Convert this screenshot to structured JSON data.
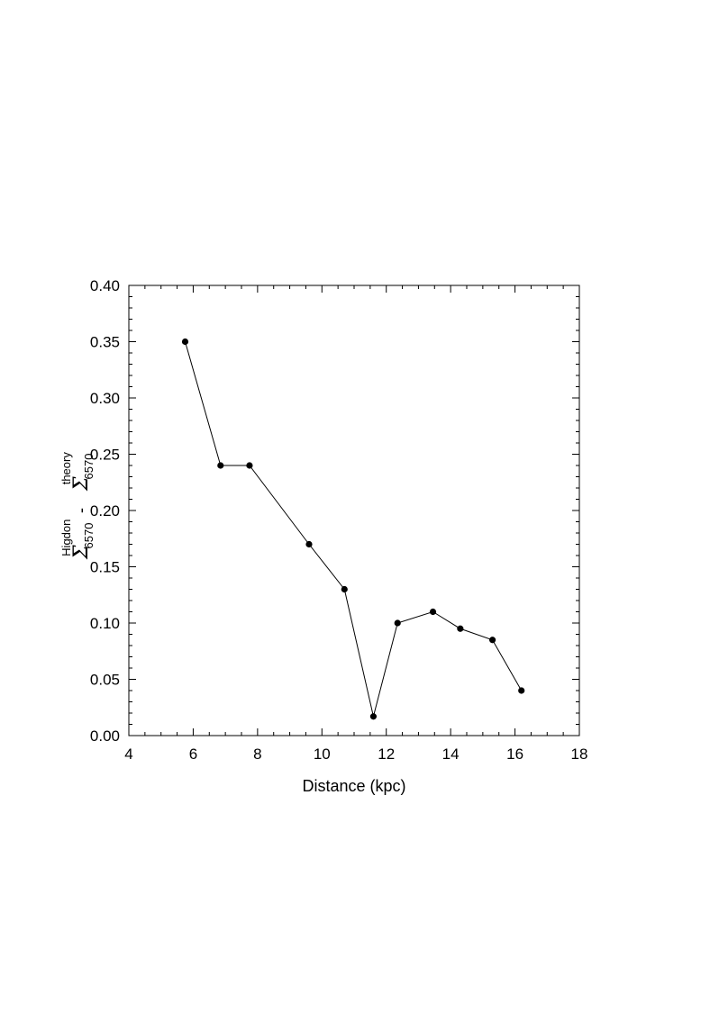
{
  "chart_data": {
    "type": "line",
    "xlabel": "Distance (kpc)",
    "ylabel": {
      "symbol": "Σ",
      "higdon_superscript": "Higdon",
      "subscript": "6570",
      "minus": "-",
      "theory_superscript": "theory"
    },
    "xlim": [
      4,
      18
    ],
    "ylim": [
      0.0,
      0.4
    ],
    "x_ticks": [
      4,
      6,
      8,
      10,
      12,
      14,
      16,
      18
    ],
    "x_tick_labels": [
      "4",
      "6",
      "8",
      "10",
      "12",
      "14",
      "16",
      "18"
    ],
    "y_ticks": [
      0.0,
      0.05,
      0.1,
      0.15,
      0.2,
      0.25,
      0.3,
      0.35,
      0.4
    ],
    "y_tick_labels": [
      "0.00",
      "0.05",
      "0.10",
      "0.15",
      "0.20",
      "0.25",
      "0.30",
      "0.35",
      "0.40"
    ],
    "grid": false,
    "legend": "none",
    "series": [
      {
        "x": [
          5.75,
          6.85,
          7.75,
          9.6,
          10.7,
          11.6,
          12.35,
          13.45,
          14.3,
          15.3,
          16.2
        ],
        "y": [
          0.35,
          0.24,
          0.24,
          0.17,
          0.13,
          0.017,
          0.1,
          0.11,
          0.095,
          0.085,
          0.04
        ],
        "color": "#000000",
        "marker": "filled-circle"
      }
    ]
  }
}
